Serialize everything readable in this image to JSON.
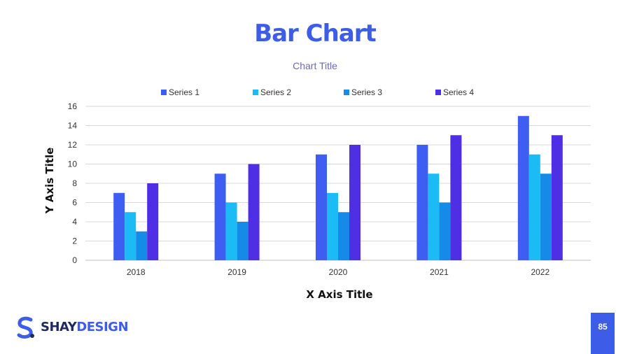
{
  "slide": {
    "title": "Bar Chart",
    "page_number": "85",
    "brand_part1": "SHAY",
    "brand_part2": "DESIGN",
    "brand_icon": "s-logo-icon"
  },
  "colors": {
    "accent": "#3d5ce8",
    "brand_dark": "#1e2a5e",
    "chart_title": "#6b6bb0",
    "grid": "#d9d9d9",
    "text": "#333333"
  },
  "chart_data": {
    "type": "bar",
    "title": "Chart Title",
    "xlabel": "X Axis Title",
    "ylabel": "Y Axis Title",
    "ylim": [
      0,
      16
    ],
    "yticks": [
      0,
      2,
      4,
      6,
      8,
      10,
      12,
      14,
      16
    ],
    "grid": true,
    "legend": "top",
    "categories": [
      "2018",
      "2019",
      "2020",
      "2021",
      "2022"
    ],
    "series": [
      {
        "name": "Series 1",
        "color": "#3d5ef0",
        "values": [
          7,
          9,
          11,
          12,
          15
        ]
      },
      {
        "name": "Series 2",
        "color": "#1bbcf5",
        "values": [
          5,
          6,
          7,
          9,
          11
        ]
      },
      {
        "name": "Series 3",
        "color": "#158ae6",
        "values": [
          3,
          4,
          5,
          6,
          9
        ]
      },
      {
        "name": "Series 4",
        "color": "#4f2fe3",
        "values": [
          8,
          10,
          12,
          13,
          13
        ]
      }
    ]
  }
}
